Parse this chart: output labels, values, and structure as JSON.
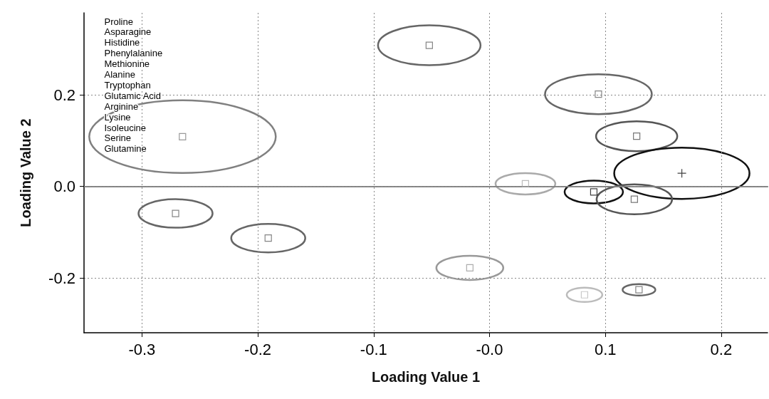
{
  "chart_data": {
    "type": "scatter",
    "xlabel": "Loading Value 1",
    "ylabel": "Loading Value 2",
    "xlim": [
      -0.35,
      0.24
    ],
    "ylim": [
      -0.32,
      0.38
    ],
    "xticks": [
      -0.3,
      -0.2,
      -0.1,
      {
        "value": 0,
        "label": "-0.0"
      },
      0.1,
      0.2
    ],
    "yticks": [
      -0.2,
      {
        "value": 0,
        "label": "0.0"
      },
      0.2
    ],
    "grid": true,
    "ref_lines": [
      {
        "axis": "y",
        "value": 0,
        "color": "#a0a0a0"
      }
    ],
    "annotations": [
      "Proline",
      "Asparagine",
      "Histidine",
      "Phenylalanine",
      "Methionine",
      "Alanine",
      "Tryptophan",
      "Glutamic Acid",
      "Arginine",
      "Lysine",
      "Isoleucine",
      "Serine",
      "Glutamine"
    ],
    "series": [
      {
        "color": "#808080",
        "marker": "square",
        "x": [
          -0.265
        ],
        "values": [
          0.109
        ]
      },
      {
        "color": "#666666",
        "marker": "square",
        "x": [
          -0.271
        ],
        "values": [
          -0.059
        ]
      },
      {
        "color": "#666666",
        "marker": "square",
        "x": [
          -0.191
        ],
        "values": [
          -0.113
        ]
      },
      {
        "color": "#666666",
        "marker": "square",
        "x": [
          -0.052
        ],
        "values": [
          0.309
        ]
      },
      {
        "color": "#999999",
        "marker": "square",
        "x": [
          -0.017
        ],
        "values": [
          -0.178
        ]
      },
      {
        "color": "#aaaaaa",
        "marker": "square",
        "x": [
          0.031
        ],
        "values": [
          0.006
        ]
      },
      {
        "color": "#666666",
        "marker": "square",
        "x": [
          0.094
        ],
        "values": [
          0.202
        ]
      },
      {
        "color": "#555555",
        "marker": "square",
        "x": [
          0.127
        ],
        "values": [
          0.11
        ]
      },
      {
        "color": "#111111",
        "marker": "cross",
        "x": [
          0.166
        ],
        "values": [
          0.029
        ]
      },
      {
        "color": "#111111",
        "marker": "square",
        "x": [
          0.09
        ],
        "values": [
          -0.012
        ]
      },
      {
        "color": "#555555",
        "marker": "square",
        "x": [
          0.125
        ],
        "values": [
          -0.028
        ]
      },
      {
        "color": "#bbbbbb",
        "marker": "square",
        "x": [
          0.082
        ],
        "values": [
          -0.237
        ]
      },
      {
        "color": "#666666",
        "marker": "square",
        "x": [
          0.129
        ],
        "values": [
          -0.226
        ]
      }
    ]
  }
}
